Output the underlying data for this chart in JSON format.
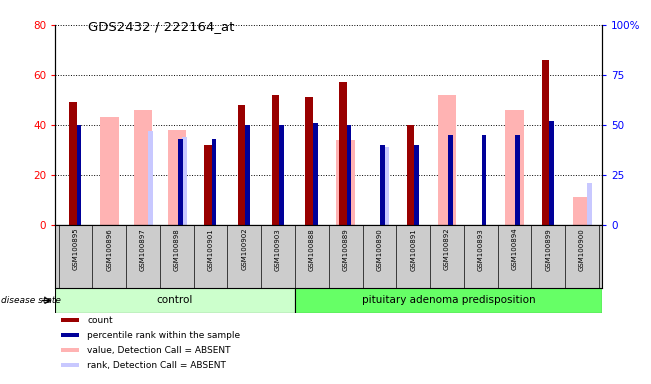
{
  "title": "GDS2432 / 222164_at",
  "samples": [
    "GSM100895",
    "GSM100896",
    "GSM100897",
    "GSM100898",
    "GSM100901",
    "GSM100902",
    "GSM100903",
    "GSM100888",
    "GSM100889",
    "GSM100890",
    "GSM100891",
    "GSM100892",
    "GSM100893",
    "GSM100894",
    "GSM100899",
    "GSM100900"
  ],
  "count_values": [
    49,
    0,
    0,
    0,
    32,
    48,
    52,
    51,
    57,
    0,
    40,
    0,
    0,
    0,
    66,
    0
  ],
  "percentile_values": [
    50,
    0,
    0,
    43,
    43,
    50,
    50,
    51,
    50,
    40,
    40,
    45,
    45,
    45,
    52,
    0
  ],
  "absent_value_values": [
    0,
    43,
    46,
    38,
    0,
    0,
    0,
    0,
    34,
    0,
    0,
    52,
    0,
    46,
    0,
    11
  ],
  "absent_rank_values": [
    0,
    0,
    47,
    44,
    0,
    0,
    0,
    0,
    0,
    39,
    0,
    0,
    0,
    0,
    0,
    21
  ],
  "control_count": 7,
  "disease_count": 9,
  "group_labels": [
    "control",
    "pituitary adenoma predisposition"
  ],
  "ylim_left": [
    0,
    80
  ],
  "ylim_right": [
    0,
    100
  ],
  "yticks_left": [
    0,
    20,
    40,
    60,
    80
  ],
  "yticks_right": [
    0,
    25,
    50,
    75,
    100
  ],
  "ytick_labels_left": [
    "0",
    "20",
    "40",
    "60",
    "80"
  ],
  "ytick_labels_right": [
    "0",
    "25",
    "50",
    "75",
    "100%"
  ],
  "color_count": "#990000",
  "color_percentile": "#000099",
  "color_absent_value": "#ffb3b3",
  "color_absent_rank": "#c8c8ff",
  "color_control_bg": "#ccffcc",
  "color_disease_bg": "#66ff66",
  "color_label_bg": "#cccccc",
  "legend_items": [
    "count",
    "percentile rank within the sample",
    "value, Detection Call = ABSENT",
    "rank, Detection Call = ABSENT"
  ]
}
